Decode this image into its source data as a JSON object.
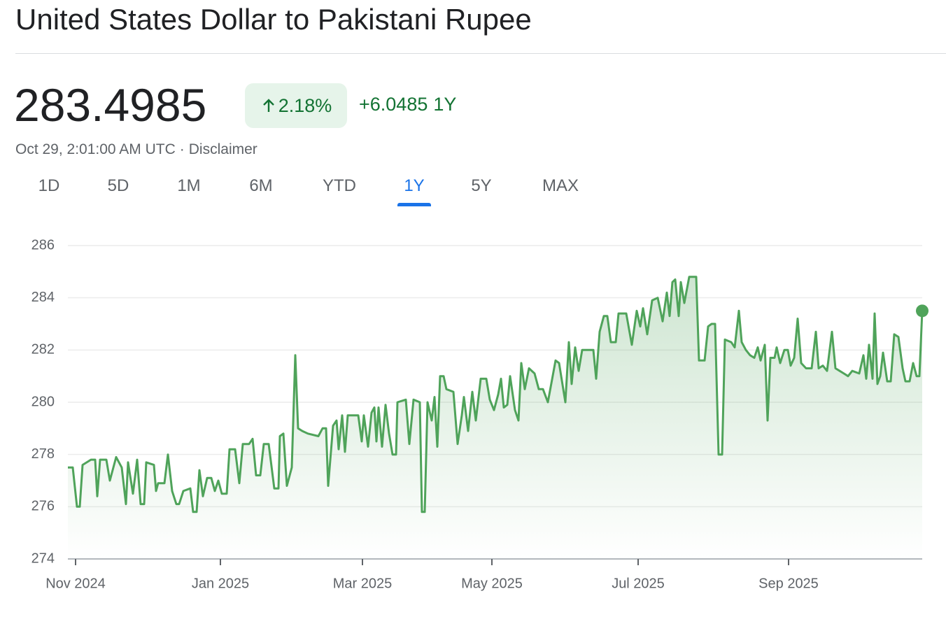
{
  "header": {
    "title": "United States Dollar to Pakistani Rupee",
    "price": "283.4985",
    "change_percent": "2.18%",
    "change": "+6.0485",
    "change_period": "1Y",
    "timestamp": "Oct 29, 2:01:00 AM UTC",
    "separator": "·",
    "disclaimer": "Disclaimer"
  },
  "ranges": {
    "options": [
      "1D",
      "5D",
      "1M",
      "6M",
      "YTD",
      "1Y",
      "5Y",
      "MAX"
    ],
    "selected_index": 5
  },
  "chart_data": {
    "type": "line",
    "color": "#4fa35a",
    "grid": true,
    "xlim": [
      0,
      366.3
    ],
    "xticks": [
      {
        "value": 3.3,
        "label": "Nov 2024"
      },
      {
        "value": 65.4,
        "label": "Jan 2025"
      },
      {
        "value": 126.3,
        "label": "Mar 2025"
      },
      {
        "value": 181.8,
        "label": "May 2025"
      },
      {
        "value": 244.5,
        "label": "Jul 2025"
      },
      {
        "value": 309,
        "label": "Sep 2025"
      }
    ],
    "ylim": [
      274,
      286
    ],
    "yticks": [
      274,
      276,
      278,
      280,
      282,
      284,
      286
    ],
    "x": [
      0,
      2.1,
      3.9,
      5.1,
      6.3,
      9.9,
      11.7,
      12.6,
      13.8,
      16.5,
      18,
      20.7,
      23.1,
      24.9,
      25.8,
      27.9,
      29.7,
      31.2,
      32.7,
      33.6,
      36.9,
      37.8,
      38.7,
      41.4,
      42.9,
      44.7,
      46.5,
      47.7,
      49.5,
      52.5,
      53.7,
      55.2,
      56.4,
      57.9,
      59.7,
      61.5,
      63,
      64.5,
      66,
      68.1,
      69.3,
      71.7,
      73.5,
      75,
      77.7,
      79.2,
      80.7,
      82.5,
      84,
      86.1,
      88.5,
      90.3,
      90.9,
      92.4,
      93.9,
      96,
      97.5,
      98.7,
      100.5,
      102.9,
      107.4,
      109.2,
      110.7,
      111.6,
      113.7,
      115.2,
      116.1,
      117.6,
      118.8,
      120,
      124.5,
      126,
      126.9,
      128.7,
      130.2,
      131.4,
      132.3,
      133.2,
      134.7,
      136.2,
      137.7,
      139.2,
      140.7,
      141.3,
      144.9,
      146.4,
      148.2,
      150.9,
      151.8,
      153,
      154.2,
      156,
      157.2,
      158.4,
      159.6,
      161.1,
      162.3,
      165.3,
      167.1,
      168.9,
      169.8,
      171.6,
      173.4,
      174.9,
      177,
      179.4,
      180.9,
      182.7,
      184.5,
      185.7,
      186.9,
      188.4,
      189.6,
      191.7,
      193.2,
      194.4,
      195.9,
      197.7,
      200.1,
      201.9,
      203.7,
      205.8,
      209.1,
      210.6,
      213.3,
      214.8,
      216,
      217.5,
      219,
      220.5,
      225.3,
      226.5,
      228,
      229.8,
      231.3,
      232.8,
      234.9,
      236.1,
      239.4,
      241.8,
      243.9,
      245.4,
      246.6,
      248.4,
      250.5,
      252.9,
      255,
      256.8,
      258,
      259.2,
      260.4,
      261.9,
      262.8,
      264.3,
      266.4,
      269.4,
      270.6,
      273,
      274.5,
      276,
      277.5,
      279,
      280.5,
      281.7,
      284.4,
      285.9,
      287.7,
      288.9,
      290.7,
      292.5,
      294.3,
      295.8,
      297,
      298.8,
      300,
      301.2,
      303,
      303.9,
      305.4,
      307.2,
      308.7,
      309.9,
      311.4,
      312.9,
      314.4,
      316.5,
      318.9,
      320.7,
      321.9,
      323.7,
      325.5,
      327.6,
      329.1,
      330.9,
      332.7,
      334.5,
      336.3,
      339.3,
      341.1,
      342.3,
      343.5,
      345,
      345.9,
      347.1,
      348.3,
      349.5,
      351.3,
      352.8,
      354.3,
      356.1,
      357.9,
      359.1,
      360.9,
      362.4,
      363.9,
      365.1,
      366.3
    ],
    "values": [
      277.5,
      277.5,
      276,
      276,
      277.6,
      277.8,
      277.8,
      276.4,
      277.8,
      277.8,
      277,
      277.9,
      277.5,
      276.1,
      277.7,
      276.5,
      277.8,
      276.1,
      276.1,
      277.7,
      277.6,
      276.6,
      276.9,
      276.9,
      278,
      276.6,
      276.1,
      276.1,
      276.6,
      276.7,
      275.8,
      275.8,
      277.4,
      276.4,
      277.1,
      277.1,
      276.6,
      277,
      276.5,
      276.5,
      278.2,
      278.2,
      276.9,
      278.4,
      278.4,
      278.6,
      277.2,
      277.2,
      278.4,
      278.4,
      276.7,
      276.7,
      278.7,
      278.8,
      276.8,
      277.5,
      281.8,
      279,
      278.9,
      278.8,
      278.7,
      279,
      279,
      276.8,
      279.1,
      279.3,
      278.2,
      279.5,
      278.1,
      279.5,
      279.5,
      278.5,
      279.5,
      278.3,
      279.6,
      279.8,
      278.5,
      279.8,
      278.3,
      279.9,
      278.8,
      278,
      278,
      280,
      280.1,
      278.4,
      280.1,
      280,
      275.8,
      275.8,
      280,
      279.3,
      280.2,
      278.3,
      281,
      281,
      280.5,
      280.4,
      278.4,
      279.5,
      280.2,
      278.9,
      280.4,
      279.3,
      280.9,
      280.9,
      280.1,
      279.7,
      280.3,
      280.9,
      279.8,
      279.9,
      281,
      279.7,
      279.3,
      281.5,
      280.5,
      281.3,
      281.1,
      280.5,
      280.5,
      280,
      281.6,
      281.5,
      280,
      282.3,
      280.7,
      282.1,
      281.2,
      282,
      282,
      280.9,
      282.7,
      283.3,
      283.3,
      282.3,
      282.3,
      283.4,
      283.4,
      282.2,
      283.5,
      282.9,
      283.6,
      282.6,
      283.9,
      284,
      283.1,
      284.2,
      283.3,
      284.6,
      284.7,
      283.3,
      284.6,
      283.8,
      284.8,
      284.8,
      281.6,
      281.6,
      282.9,
      283,
      283,
      278,
      278,
      282.4,
      282.3,
      282.1,
      283.5,
      282.3,
      282,
      281.8,
      281.7,
      282.1,
      281.6,
      282.2,
      279.3,
      281.7,
      281.7,
      282.1,
      281.5,
      282,
      282,
      281.4,
      281.7,
      283.2,
      281.5,
      281.3,
      281.3,
      282.7,
      281.3,
      281.4,
      281.2,
      282.7,
      281.3,
      281.2,
      281.1,
      281,
      281.2,
      281.1,
      281.8,
      280.9,
      282.2,
      280.9,
      283.4,
      280.7,
      281,
      281.9,
      280.8,
      280.8,
      282.6,
      282.5,
      281.3,
      280.8,
      280.8,
      281.5,
      281,
      281,
      283.5
    ]
  }
}
